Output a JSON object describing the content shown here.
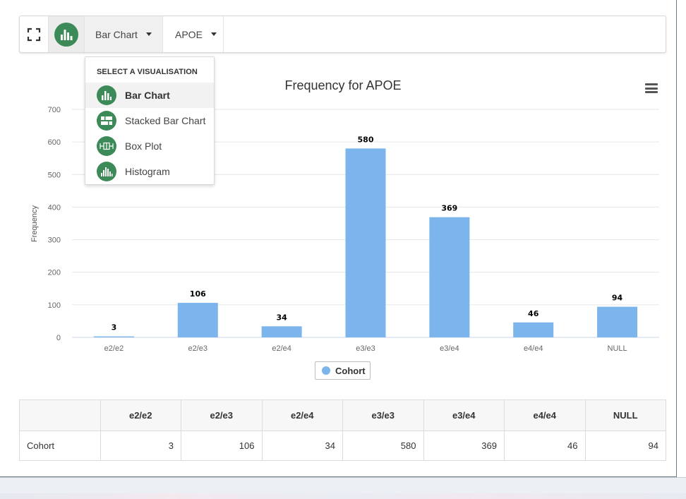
{
  "toolbar": {
    "expand_icon": "expand-icon",
    "chart_type_icon": "bar-chart-icon",
    "visualisation_label": "Bar Chart",
    "attribute_label": "APOE"
  },
  "dropdown": {
    "header": "SELECT A VISUALISATION",
    "items": [
      {
        "label": "Bar Chart",
        "icon": "bar-chart-icon",
        "selected": true
      },
      {
        "label": "Stacked Bar Chart",
        "icon": "stacked-bar-chart-icon",
        "selected": false
      },
      {
        "label": "Box Plot",
        "icon": "box-plot-icon",
        "selected": false
      },
      {
        "label": "Histogram",
        "icon": "histogram-icon",
        "selected": false
      }
    ]
  },
  "chart_menu_icon": "hamburger-menu-icon",
  "colors": {
    "accent_green": "#3b8a57",
    "bar": "#7cb5ec"
  },
  "chart_data": {
    "type": "bar",
    "title": "Frequency for APOE",
    "xlabel": "",
    "ylabel": "Frequency",
    "categories": [
      "e2/e2",
      "e2/e3",
      "e2/e4",
      "e3/e3",
      "e3/e4",
      "e4/e4",
      "NULL"
    ],
    "series": [
      {
        "name": "Cohort",
        "values": [
          3,
          106,
          34,
          580,
          369,
          46,
          94
        ]
      }
    ],
    "ylim": [
      0,
      700
    ],
    "yticks": [
      0,
      100,
      200,
      300,
      400,
      500,
      600,
      700
    ],
    "grid": true,
    "legend_position": "bottom-center",
    "data_labels": true
  },
  "table": {
    "columns": [
      "",
      "e2/e2",
      "e2/e3",
      "e2/e4",
      "e3/e3",
      "e3/e4",
      "e4/e4",
      "NULL"
    ],
    "rows": [
      {
        "label": "Cohort",
        "values": [
          "3",
          "106",
          "34",
          "580",
          "369",
          "46",
          "94"
        ]
      }
    ]
  }
}
